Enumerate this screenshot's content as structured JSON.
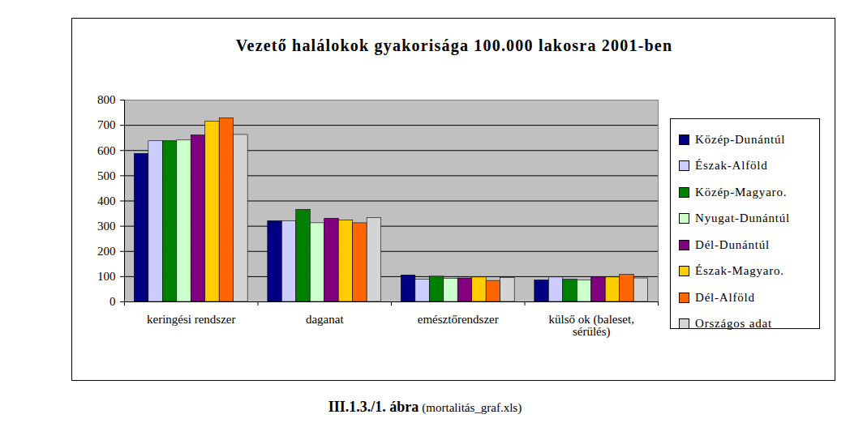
{
  "chart_data": {
    "type": "bar",
    "title": "Vezető halálokok gyakorisága 100.000 lakosra 2001-ben",
    "categories": [
      "keringési rendszer",
      "daganat",
      "emésztőrendszer",
      "külső ok (baleset, sérülés)"
    ],
    "series": [
      {
        "name": "Közép-Dunántúl",
        "color": "#000080",
        "values": [
          587,
          320,
          105,
          85
        ]
      },
      {
        "name": "Észak-Alföld",
        "color": "#ccccff",
        "values": [
          637,
          320,
          88,
          97
        ]
      },
      {
        "name": "Közép-Magyaro.",
        "color": "#008000",
        "values": [
          637,
          365,
          100,
          88
        ]
      },
      {
        "name": "Nyugat-Dunántúl",
        "color": "#ccffcc",
        "values": [
          640,
          312,
          92,
          85
        ]
      },
      {
        "name": "Dél-Dunántúl",
        "color": "#800080",
        "values": [
          660,
          330,
          93,
          97
        ]
      },
      {
        "name": "Észak-Magyaro.",
        "color": "#ffcc00",
        "values": [
          715,
          323,
          97,
          97
        ]
      },
      {
        "name": "Dél-Alföld",
        "color": "#ff6600",
        "values": [
          728,
          312,
          83,
          107
        ]
      },
      {
        "name": "Országos adat",
        "color": "#d4d4d4",
        "values": [
          662,
          333,
          95,
          93
        ]
      }
    ],
    "ylim": [
      0,
      800
    ],
    "yticks": [
      0,
      100,
      200,
      300,
      400,
      500,
      600,
      700,
      800
    ],
    "grid": true,
    "legend": "right",
    "annotations": [
      "III.1.3./1. ábra",
      "(mortalitás_graf.xls)"
    ]
  }
}
